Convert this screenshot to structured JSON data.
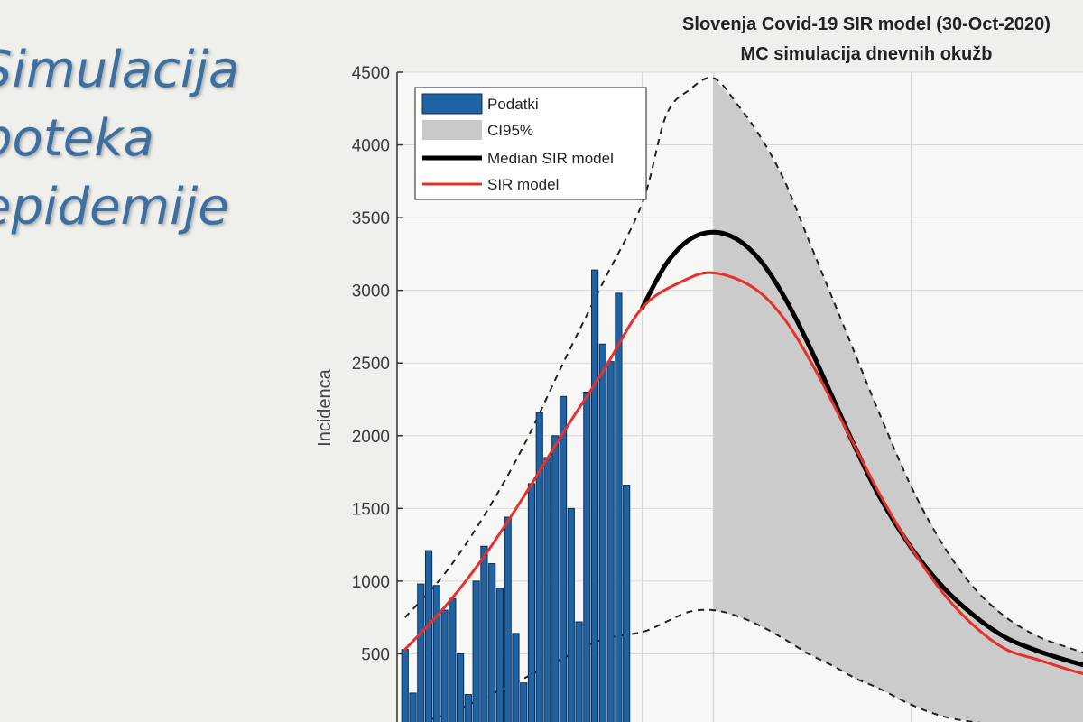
{
  "slide": {
    "title_lines": [
      "Simulacija",
      "poteka",
      "epidemije"
    ]
  },
  "chart_data": {
    "type": "bar+line",
    "title_lines": [
      "Slovenja Covid-19 SIR model (30-Oct-2020)",
      "MC simulacija dnevnih okužb"
    ],
    "ylabel": "Incidenca",
    "xlabel": "",
    "ylim": [
      0,
      4500
    ],
    "yticks": [
      500,
      1000,
      1500,
      2000,
      2500,
      3000,
      3500,
      4000,
      4500
    ],
    "ytick_labels": [
      "500",
      "1000",
      "1500",
      "2000",
      "2500",
      "3000",
      "3500",
      "4000",
      "4500"
    ],
    "x_range_days": [
      -2,
      58
    ],
    "vertical_gridlines_day": [
      0,
      9,
      34
    ],
    "forecast_start_day": 9,
    "legend": {
      "position": "top-left",
      "entries": [
        "Podatki",
        "CI95%",
        "Median SIR model",
        "SIR model"
      ]
    },
    "colors": {
      "bars": "#1f63a4",
      "bar_edge": "#0d2f55",
      "ci_fill": "#c8c8c8",
      "ci_edge": "#222222",
      "median": "#000000",
      "sir": "#e8302a",
      "grid": "#d8d8d8"
    },
    "series": [
      {
        "name": "Podatki",
        "type": "bar",
        "x_start": -30,
        "x_step": 1,
        "values": [
          530,
          230,
          980,
          1210,
          970,
          800,
          880,
          500,
          220,
          1000,
          1240,
          1120,
          950,
          1440,
          640,
          300,
          1670,
          2160,
          1850,
          2000,
          2270,
          1500,
          720,
          2300,
          3140,
          2630,
          2510,
          2980,
          1660
        ]
      },
      {
        "name": "SIR model",
        "type": "line",
        "x": [
          -30,
          -25,
          -20,
          -15,
          -10,
          -5,
          0,
          5,
          9,
          14,
          18,
          22,
          26,
          30,
          34,
          38,
          42,
          46,
          50,
          54,
          58
        ],
        "values": [
          530,
          820,
          1170,
          1580,
          2020,
          2440,
          2880,
          3060,
          3120,
          3020,
          2800,
          2440,
          2020,
          1600,
          1230,
          920,
          690,
          530,
          460,
          390,
          330
        ]
      },
      {
        "name": "Median SIR model",
        "type": "line",
        "x": [
          0,
          3,
          6,
          9,
          12,
          15,
          18,
          21,
          24,
          27,
          30,
          34,
          38,
          42,
          46,
          50,
          54,
          58
        ],
        "values": [
          2880,
          3180,
          3350,
          3400,
          3350,
          3200,
          2950,
          2630,
          2270,
          1910,
          1580,
          1230,
          960,
          760,
          610,
          520,
          450,
          390
        ]
      },
      {
        "name": "CI95% upper",
        "type": "line",
        "x": [
          -30,
          -25,
          -20,
          -15,
          -10,
          -5,
          0,
          3,
          6,
          9,
          12,
          15,
          18,
          21,
          24,
          27,
          30,
          34,
          38,
          42,
          46,
          50,
          54,
          58
        ],
        "values": [
          750,
          1050,
          1450,
          1930,
          2500,
          3050,
          3600,
          4200,
          4380,
          4460,
          4280,
          4050,
          3750,
          3350,
          2950,
          2550,
          2150,
          1650,
          1250,
          950,
          750,
          620,
          540,
          470
        ]
      },
      {
        "name": "CI95% lower",
        "type": "line",
        "x": [
          -30,
          -25,
          -20,
          -15,
          -10,
          -5,
          0,
          3,
          6,
          9,
          12,
          15,
          18,
          21,
          24,
          27,
          30,
          34,
          38,
          42,
          46,
          50,
          54,
          58
        ],
        "values": [
          0,
          80,
          200,
          330,
          470,
          600,
          650,
          720,
          790,
          800,
          760,
          690,
          600,
          500,
          420,
          330,
          260,
          150,
          70,
          30,
          10,
          0,
          0,
          0
        ]
      }
    ]
  }
}
